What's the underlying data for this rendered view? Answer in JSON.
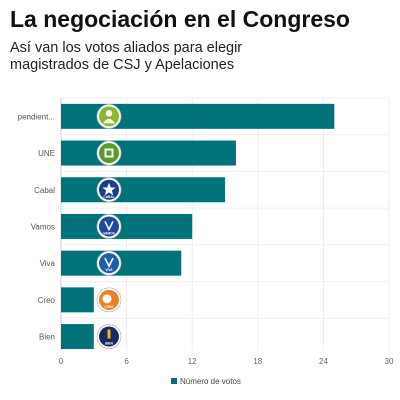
{
  "chart_data": {
    "type": "bar",
    "orientation": "horizontal",
    "title": "La negociación en el Congreso",
    "subtitle": "Así van los votos aliados para elegir magistrados de CSJ y Apelaciones",
    "categories": [
      "pendient...",
      "UNE",
      "Cabal",
      "Vamos",
      "Viva",
      "Creo",
      "Bien"
    ],
    "series": [
      {
        "name": "Número de votos",
        "values": [
          25,
          16,
          15,
          12,
          11,
          3,
          3
        ]
      }
    ],
    "xlim": [
      0,
      30
    ],
    "xticks": [
      0,
      6,
      12,
      18,
      24,
      30
    ],
    "grid": true,
    "legend": "bottom-center",
    "bar_color": "#00727a",
    "icons": [
      "person-logo-icon",
      "une-logo-icon",
      "cabal-logo-icon",
      "vamos-logo-icon",
      "viva-logo-icon",
      "creo-logo-icon",
      "bien-logo-icon"
    ],
    "icon_texts": [
      "",
      "",
      "CABAL",
      "VAMOS",
      "VIVA",
      "CREO",
      "BIEN"
    ],
    "icon_colors": [
      "#8ab832",
      "#5c9a2e",
      "#16408c",
      "#1f4a9c",
      "#1f5fa8",
      "#e8822a",
      "#1a2a5c"
    ]
  }
}
